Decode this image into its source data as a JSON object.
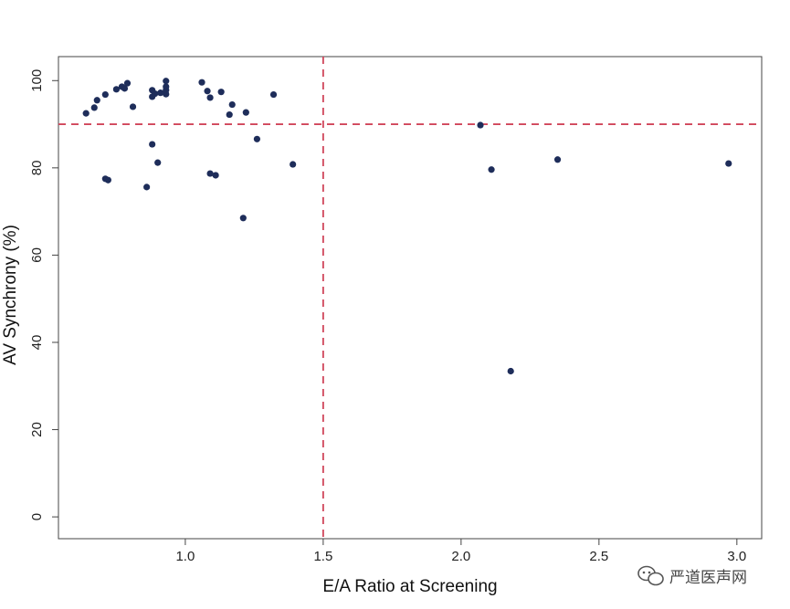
{
  "chart_data": {
    "type": "scatter",
    "xlabel": "E/A Ratio at Screening",
    "ylabel": "AV Synchrony (%)",
    "xlim": [
      0.54,
      3.09
    ],
    "ylim": [
      -5,
      105.5
    ],
    "x_ticks": [
      1.0,
      1.5,
      2.0,
      2.5,
      3.0
    ],
    "x_tick_labels": [
      "1.0",
      "1.5",
      "2.0",
      "2.5",
      "3.0"
    ],
    "y_ticks": [
      0,
      20,
      40,
      60,
      80,
      100
    ],
    "y_tick_labels": [
      "0",
      "20",
      "40",
      "60",
      "80",
      "100"
    ],
    "grid": false,
    "reference_lines": [
      {
        "orientation": "vertical",
        "value": 1.5,
        "style": "dashed",
        "color": "#d0455a"
      },
      {
        "orientation": "horizontal",
        "value": 90,
        "style": "dashed",
        "color": "#d0455a"
      }
    ],
    "marker_color": "#1e2d5a",
    "points": [
      {
        "x": 0.64,
        "y": 92.5
      },
      {
        "x": 0.67,
        "y": 93.8
      },
      {
        "x": 0.68,
        "y": 95.5
      },
      {
        "x": 0.71,
        "y": 96.8
      },
      {
        "x": 0.75,
        "y": 98.0
      },
      {
        "x": 0.77,
        "y": 98.6
      },
      {
        "x": 0.78,
        "y": 98.2
      },
      {
        "x": 0.79,
        "y": 99.4
      },
      {
        "x": 0.81,
        "y": 94.0
      },
      {
        "x": 0.88,
        "y": 96.3
      },
      {
        "x": 0.88,
        "y": 97.8
      },
      {
        "x": 0.89,
        "y": 97.0
      },
      {
        "x": 0.91,
        "y": 97.2
      },
      {
        "x": 0.93,
        "y": 96.9
      },
      {
        "x": 0.93,
        "y": 97.8
      },
      {
        "x": 0.93,
        "y": 98.6
      },
      {
        "x": 0.93,
        "y": 99.9
      },
      {
        "x": 1.06,
        "y": 99.6
      },
      {
        "x": 1.08,
        "y": 97.6
      },
      {
        "x": 1.09,
        "y": 96.1
      },
      {
        "x": 1.13,
        "y": 97.4
      },
      {
        "x": 1.17,
        "y": 94.5
      },
      {
        "x": 1.16,
        "y": 92.2
      },
      {
        "x": 1.22,
        "y": 92.7
      },
      {
        "x": 1.32,
        "y": 96.8
      },
      {
        "x": 0.88,
        "y": 85.4
      },
      {
        "x": 1.26,
        "y": 86.6
      },
      {
        "x": 0.9,
        "y": 81.2
      },
      {
        "x": 1.39,
        "y": 80.8
      },
      {
        "x": 1.09,
        "y": 78.7
      },
      {
        "x": 1.11,
        "y": 78.3
      },
      {
        "x": 0.71,
        "y": 77.5
      },
      {
        "x": 0.72,
        "y": 77.2
      },
      {
        "x": 0.86,
        "y": 75.6
      },
      {
        "x": 1.21,
        "y": 68.5
      },
      {
        "x": 2.07,
        "y": 89.8
      },
      {
        "x": 2.11,
        "y": 79.6
      },
      {
        "x": 2.35,
        "y": 81.9
      },
      {
        "x": 2.97,
        "y": 81.0
      },
      {
        "x": 2.18,
        "y": 33.4
      }
    ]
  },
  "watermark": {
    "text": "严道医声网",
    "icon": "wechat-icon"
  }
}
